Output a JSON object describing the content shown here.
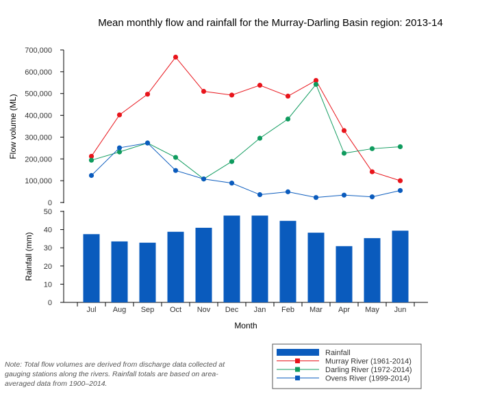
{
  "chart_data": {
    "type": "line+bar",
    "title": "Mean monthly flow and rainfall for the Murray-Darling Basin region: 2013-14",
    "xlabel": "Month",
    "categories": [
      "Jul",
      "Aug",
      "Sep",
      "Oct",
      "Nov",
      "Dec",
      "Jan",
      "Feb",
      "Mar",
      "Apr",
      "May",
      "Jun"
    ],
    "flow_panel": {
      "ylabel": "Flow volume (ML)",
      "ylim": [
        0,
        700000
      ],
      "yticks": [
        "0",
        "100,000",
        "200,000",
        "300,000",
        "400,000",
        "500,000",
        "600,000",
        "700,000"
      ],
      "series": [
        {
          "name": "Murray River (1961-2014)",
          "color": "#e8141b",
          "values": [
            212000,
            402000,
            497000,
            667000,
            510000,
            493000,
            538000,
            488000,
            560000,
            330000,
            141000,
            100000
          ]
        },
        {
          "name": "Darling River (1972-2014)",
          "color": "#0f9b5e",
          "values": [
            194000,
            232000,
            273000,
            207000,
            108000,
            188000,
            295000,
            383000,
            542000,
            226000,
            247000,
            256000
          ]
        },
        {
          "name": "Ovens River (1999-2014)",
          "color": "#0a5bbd",
          "values": [
            124000,
            251000,
            273000,
            147000,
            108000,
            89000,
            36000,
            49000,
            23000,
            34000,
            26000,
            55000
          ]
        }
      ]
    },
    "rainfall_panel": {
      "ylabel": "Rainfall (mm)",
      "ylim": [
        0,
        50
      ],
      "yticks": [
        "0",
        "10",
        "20",
        "30",
        "40",
        "50"
      ],
      "series": [
        {
          "name": "Rainfall",
          "color": "#0a5bbd",
          "values": [
            37.5,
            33.5,
            32.8,
            38.8,
            41,
            47.7,
            47.7,
            44.8,
            38.3,
            30.9,
            35.3,
            39.4
          ]
        }
      ]
    },
    "legend": {
      "placement": "bottom-right",
      "entries": [
        "Rainfall",
        "Murray River (1961-2014)",
        "Darling River (1972-2014)",
        "Ovens River (1999-2014)"
      ]
    }
  },
  "note": "Note: Total flow volumes are derived from discharge data collected at gauging stations along the rivers. Rainfall totals are based on area-averaged data from 1900–2014."
}
